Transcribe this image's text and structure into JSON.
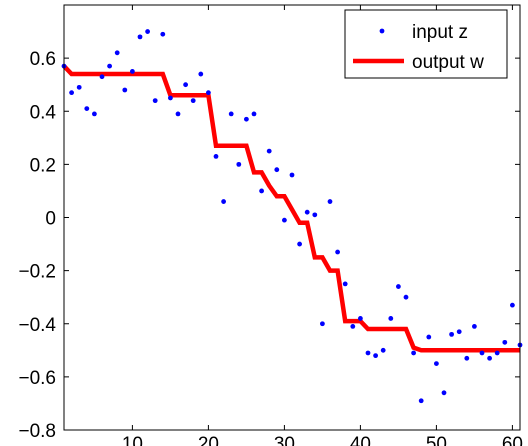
{
  "chart_data": {
    "type": "line",
    "title": "",
    "xlabel": "",
    "ylabel": "",
    "xlim": [
      1,
      61
    ],
    "ylim": [
      -0.8,
      0.8
    ],
    "xticks": [
      10,
      20,
      30,
      40,
      50,
      60
    ],
    "xtick_labels": [
      "10",
      "20",
      "30",
      "40",
      "50",
      "60"
    ],
    "yticks": [
      -0.8,
      -0.6,
      -0.4,
      -0.2,
      0,
      0.2,
      0.4,
      0.6
    ],
    "ytick_labels": [
      "−0.8",
      "−0.6",
      "−0.4",
      "−0.2",
      "0",
      "0.2",
      "0.4",
      "0.6"
    ],
    "grid": false,
    "legend_position": "top-right",
    "series": [
      {
        "name": "input z",
        "style": "markers",
        "color": "#0000ff",
        "x": [
          1,
          2,
          3,
          4,
          5,
          6,
          7,
          8,
          9,
          10,
          11,
          12,
          13,
          14,
          15,
          16,
          17,
          18,
          19,
          20,
          21,
          22,
          23,
          24,
          25,
          26,
          27,
          28,
          29,
          30,
          31,
          32,
          33,
          34,
          35,
          36,
          37,
          38,
          39,
          40,
          41,
          42,
          43,
          44,
          45,
          46,
          47,
          48,
          49,
          50,
          51,
          52,
          53,
          54,
          55,
          56,
          57,
          58,
          59,
          60,
          61
        ],
        "y": [
          0.57,
          0.47,
          0.49,
          0.41,
          0.39,
          0.53,
          0.57,
          0.62,
          0.48,
          0.55,
          0.68,
          0.7,
          0.44,
          0.69,
          0.45,
          0.39,
          0.5,
          0.44,
          0.54,
          0.47,
          0.23,
          0.06,
          0.39,
          0.2,
          0.37,
          0.39,
          0.1,
          0.25,
          0.18,
          -0.01,
          0.16,
          -0.1,
          0.02,
          0.01,
          -0.4,
          0.06,
          -0.13,
          -0.25,
          -0.41,
          -0.38,
          -0.51,
          -0.52,
          -0.5,
          -0.38,
          -0.26,
          -0.3,
          -0.51,
          -0.69,
          -0.45,
          -0.55,
          -0.66,
          -0.44,
          -0.43,
          -0.53,
          -0.41,
          -0.51,
          -0.53,
          -0.51,
          -0.47,
          -0.33,
          -0.48
        ]
      },
      {
        "name": "output w",
        "style": "line",
        "color": "#ff0000",
        "x": [
          1,
          2,
          14,
          15,
          20,
          21,
          25,
          26,
          27,
          28,
          29,
          30,
          31,
          32,
          33,
          34,
          35,
          36,
          37,
          38,
          39,
          40,
          41,
          42,
          46,
          47,
          48,
          61
        ],
        "y": [
          0.57,
          0.54,
          0.54,
          0.46,
          0.46,
          0.27,
          0.27,
          0.17,
          0.17,
          0.12,
          0.08,
          0.08,
          0.03,
          -0.02,
          -0.02,
          -0.15,
          -0.15,
          -0.2,
          -0.2,
          -0.39,
          -0.39,
          -0.39,
          -0.42,
          -0.42,
          -0.42,
          -0.49,
          -0.5,
          -0.5
        ]
      }
    ]
  }
}
